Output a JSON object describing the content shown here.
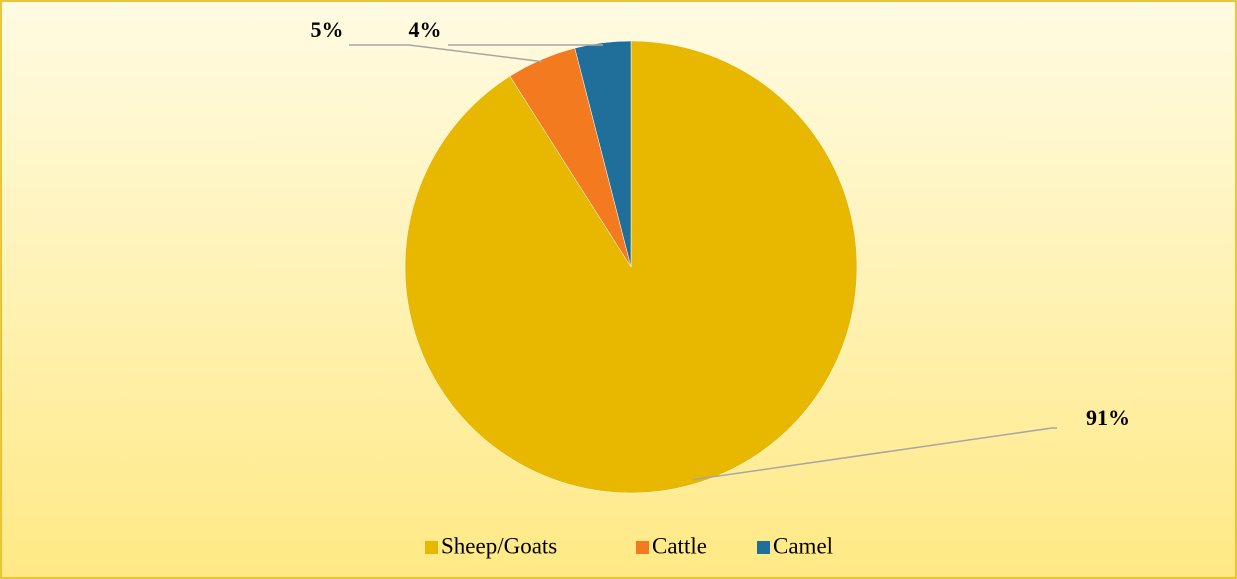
{
  "chart_data": {
    "type": "pie",
    "categories": [
      "Sheep/Goats",
      "Cattle",
      "Camel"
    ],
    "values": [
      91,
      5,
      4
    ],
    "value_labels": [
      "91%",
      "5%",
      "4%"
    ],
    "colors": [
      "#e8b800",
      "#f47a1f",
      "#1f6f9a"
    ],
    "legend": "bottom"
  }
}
